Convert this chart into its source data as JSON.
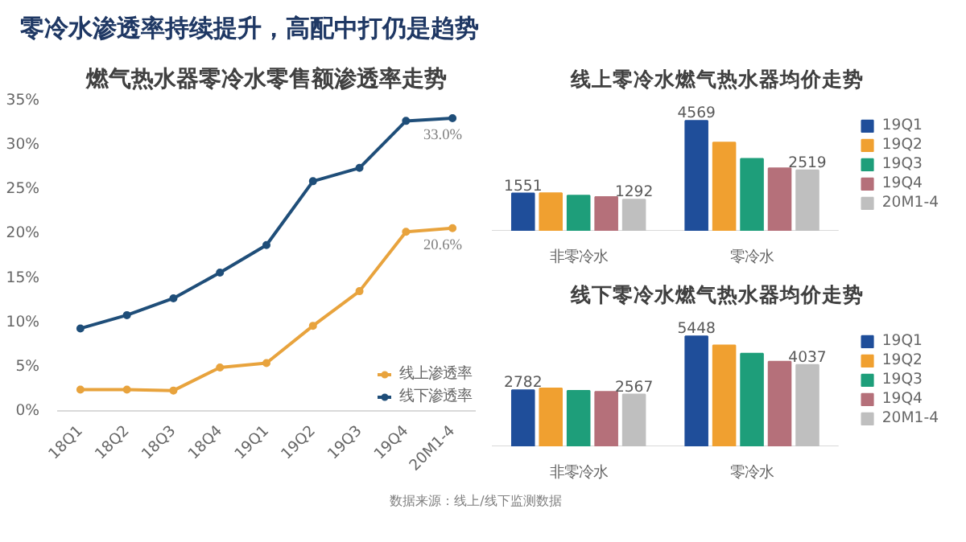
{
  "chart_data": [
    {
      "type": "other",
      "title": "零冷水渗透率持续提升，高配中打仍是趋势",
      "annotations": [
        "数据来源：线上/线下监测数据"
      ]
    },
    {
      "type": "line",
      "title": "燃气热水器零冷水零售额渗透率走势",
      "categories": [
        "18Q1",
        "18Q2",
        "18Q3",
        "18Q4",
        "19Q1",
        "19Q2",
        "19Q3",
        "19Q4",
        "20M1-4"
      ],
      "series": [
        {
          "name": "线上渗透率",
          "color": "#e8a33d",
          "values": [
            2.4,
            2.4,
            2.3,
            4.9,
            5.4,
            9.6,
            13.5,
            20.2,
            20.6
          ],
          "value_labels": [
            null,
            null,
            null,
            null,
            null,
            null,
            null,
            null,
            "20.6%"
          ]
        },
        {
          "name": "线下渗透率",
          "color": "#1f4e79",
          "values": [
            9.3,
            10.8,
            12.7,
            15.6,
            18.7,
            25.9,
            27.4,
            32.7,
            33.0
          ],
          "value_labels": [
            null,
            null,
            null,
            null,
            null,
            null,
            null,
            null,
            "33.0%"
          ]
        }
      ],
      "ylim": [
        0,
        35
      ],
      "yticks": [
        {
          "value": 0,
          "label": "0%"
        },
        {
          "value": 5,
          "label": "5%"
        },
        {
          "value": 10,
          "label": "10%"
        },
        {
          "value": 15,
          "label": "15%"
        },
        {
          "value": 20,
          "label": "20%"
        },
        {
          "value": 25,
          "label": "25%"
        },
        {
          "value": 30,
          "label": "30%"
        },
        {
          "value": 35,
          "label": "35%"
        }
      ],
      "grid": false,
      "legend": "bottom right",
      "marker": "circle",
      "line_style": "solid"
    },
    {
      "type": "bar",
      "title": "线上零冷水燃气热水器均价走势",
      "categories": [
        "非零冷水",
        "零冷水"
      ],
      "series": [
        {
          "name": "19Q1",
          "color": "#1f4e9a",
          "values": [
            1551,
            4569
          ],
          "value_labels": [
            "1551",
            "4569"
          ]
        },
        {
          "name": "19Q2",
          "color": "#f0a030",
          "values": [
            1560,
            3670
          ]
        },
        {
          "name": "19Q3",
          "color": "#1e9e7a",
          "values": [
            1460,
            2990
          ]
        },
        {
          "name": "19Q4",
          "color": "#b5707a",
          "values": [
            1400,
            2600
          ]
        },
        {
          "name": "20M1-4",
          "color": "#bfbfbf",
          "values": [
            1292,
            2519
          ],
          "value_labels": [
            "1292",
            "2519"
          ]
        }
      ],
      "grid": false,
      "legend": "right"
    },
    {
      "type": "bar",
      "title": "线下零冷水燃气热水器均价走势",
      "categories": [
        "非零冷水",
        "零冷水"
      ],
      "series": [
        {
          "name": "19Q1",
          "color": "#1f4e9a",
          "values": [
            2782,
            5448
          ],
          "value_labels": [
            "2782",
            "5448"
          ]
        },
        {
          "name": "19Q2",
          "color": "#f0a030",
          "values": [
            2870,
            5000
          ]
        },
        {
          "name": "19Q3",
          "color": "#1e9e7a",
          "values": [
            2750,
            4590
          ]
        },
        {
          "name": "19Q4",
          "color": "#b5707a",
          "values": [
            2700,
            4200
          ]
        },
        {
          "name": "20M1-4",
          "color": "#bfbfbf",
          "values": [
            2567,
            4037
          ],
          "value_labels": [
            "2567",
            "4037"
          ]
        }
      ],
      "grid": false,
      "legend": "right"
    }
  ]
}
